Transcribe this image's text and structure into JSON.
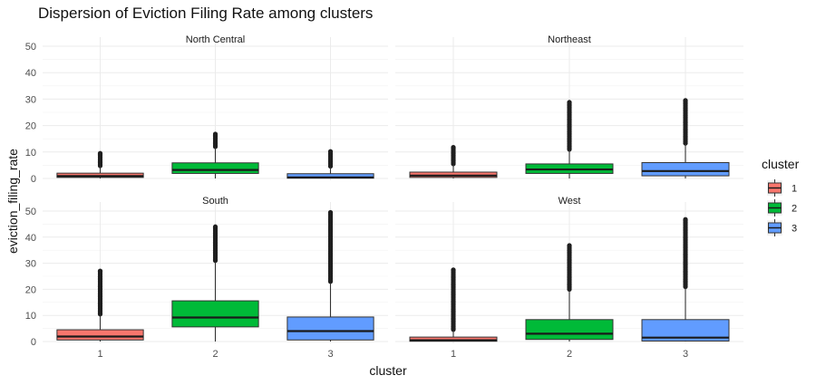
{
  "chart_data": {
    "type": "boxplot",
    "title": "Dispersion of Eviction Filing Rate among clusters",
    "xlabel": "cluster",
    "ylabel": "eviction_filing_rate",
    "categories": [
      "1",
      "2",
      "3"
    ],
    "ylim": [
      0,
      50
    ],
    "yticks": [
      0,
      10,
      20,
      30,
      40,
      50
    ],
    "grid": true,
    "facet_layout": "2x2",
    "legend": {
      "title": "cluster",
      "placement": "right",
      "entries": [
        {
          "label": "1",
          "color": "#F8766D"
        },
        {
          "label": "2",
          "color": "#00BA38"
        },
        {
          "label": "3",
          "color": "#619CFF"
        }
      ]
    },
    "panels": [
      {
        "name": "North Central",
        "boxes": [
          {
            "cluster": "1",
            "q1": 0.4,
            "median": 0.9,
            "q3": 2.0,
            "whisker_low": 0,
            "whisker_high": 4.6,
            "outlier_min": 4.8,
            "outlier_max": 9.5
          },
          {
            "cluster": "2",
            "q1": 1.9,
            "median": 3.2,
            "q3": 5.9,
            "whisker_low": 0,
            "whisker_high": 11.8,
            "outlier_min": 12.0,
            "outlier_max": 16.8
          },
          {
            "cluster": "3",
            "q1": 0.1,
            "median": 0.4,
            "q3": 1.8,
            "whisker_low": 0,
            "whisker_high": 4.3,
            "outlier_min": 4.6,
            "outlier_max": 10.2
          }
        ]
      },
      {
        "name": "Northeast",
        "boxes": [
          {
            "cluster": "1",
            "q1": 0.4,
            "median": 1.1,
            "q3": 2.4,
            "whisker_low": 0,
            "whisker_high": 5.2,
            "outlier_min": 5.5,
            "outlier_max": 11.8
          },
          {
            "cluster": "2",
            "q1": 1.9,
            "median": 3.4,
            "q3": 5.5,
            "whisker_low": 0,
            "whisker_high": 10.7,
            "outlier_min": 11.0,
            "outlier_max": 28.8
          },
          {
            "cluster": "3",
            "q1": 1.0,
            "median": 2.8,
            "q3": 6.0,
            "whisker_low": 0,
            "whisker_high": 13.0,
            "outlier_min": 13.3,
            "outlier_max": 29.5
          }
        ]
      },
      {
        "name": "South",
        "boxes": [
          {
            "cluster": "1",
            "q1": 0.6,
            "median": 1.9,
            "q3": 4.5,
            "whisker_low": 0,
            "whisker_high": 10.2,
            "outlier_min": 10.5,
            "outlier_max": 27.0
          },
          {
            "cluster": "2",
            "q1": 5.6,
            "median": 9.2,
            "q3": 15.6,
            "whisker_low": 0,
            "whisker_high": 30.5,
            "outlier_min": 31.0,
            "outlier_max": 44.0
          },
          {
            "cluster": "3",
            "q1": 0.6,
            "median": 4.0,
            "q3": 9.4,
            "whisker_low": 0,
            "whisker_high": 22.5,
            "outlier_min": 23.0,
            "outlier_max": 49.5
          }
        ]
      },
      {
        "name": "West",
        "boxes": [
          {
            "cluster": "1",
            "q1": 0.1,
            "median": 0.5,
            "q3": 1.7,
            "whisker_low": 0,
            "whisker_high": 4.2,
            "outlier_min": 4.6,
            "outlier_max": 27.5
          },
          {
            "cluster": "2",
            "q1": 0.8,
            "median": 3.0,
            "q3": 8.4,
            "whisker_low": 0,
            "whisker_high": 19.5,
            "outlier_min": 20.0,
            "outlier_max": 36.8
          },
          {
            "cluster": "3",
            "q1": 0.2,
            "median": 1.5,
            "q3": 8.4,
            "whisker_low": 0,
            "whisker_high": 20.5,
            "outlier_min": 21.0,
            "outlier_max": 46.8
          }
        ]
      }
    ]
  }
}
